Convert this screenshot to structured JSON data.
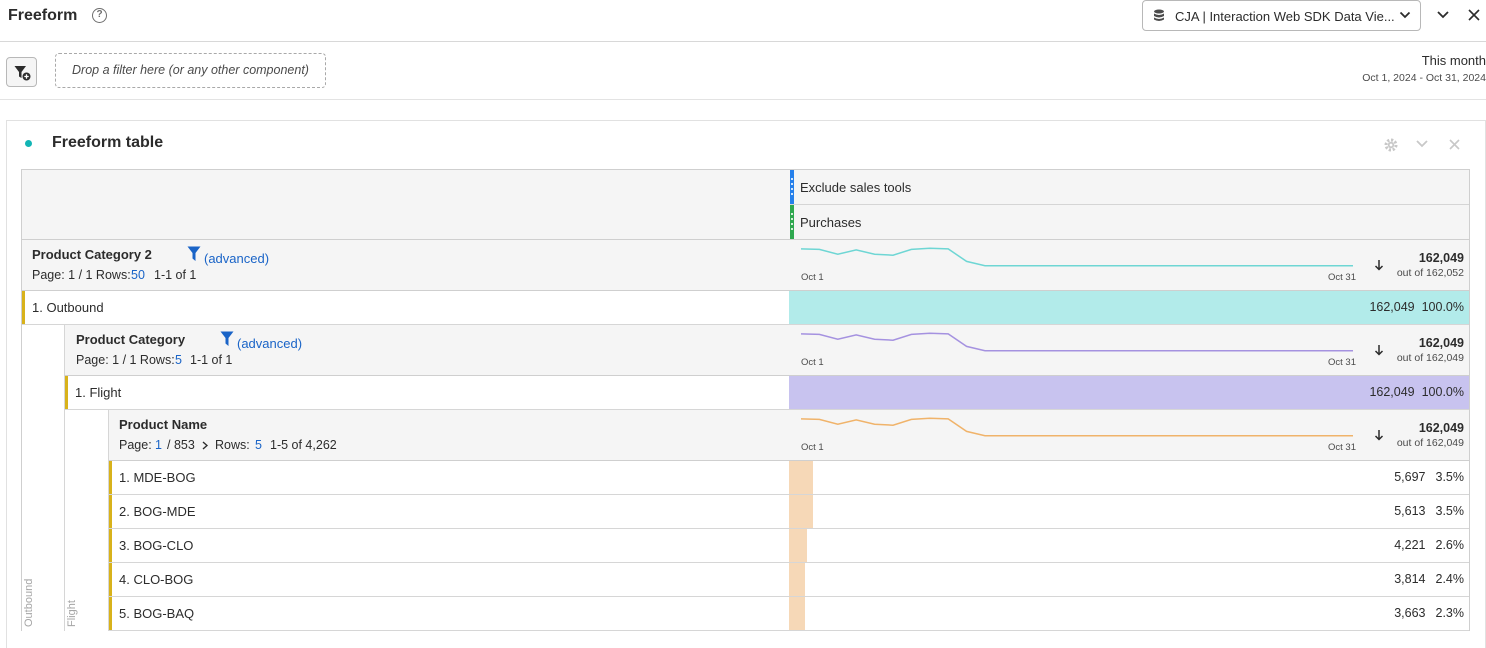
{
  "app": {
    "title": "Freeform",
    "data_view": "CJA | Interaction Web SDK Data Vie..."
  },
  "filter_bar": {
    "drop_zone": "Drop a filter here (or any other component)",
    "date_label": "This month",
    "date_range": "Oct 1, 2024 - Oct 31, 2024"
  },
  "panel": {
    "title": "Freeform table"
  },
  "metrics": {
    "segment": "Exclude sales tools",
    "metric": "Purchases",
    "segment_color": "#2680eb",
    "metric_color": "#2fa84f"
  },
  "dims": {
    "d1": {
      "name": "Product Category 2",
      "filter": "(advanced)",
      "page_label": "Page: 1 / 1 Rows:",
      "rows": "50",
      "range": "1-1 of 1",
      "spark_start": "Oct 1",
      "spark_end": "Oct 31",
      "total": "162,049",
      "out_of": "out of 162,052",
      "color": "#6ed6d4"
    },
    "d2": {
      "name": "Product Category",
      "filter": "(advanced)",
      "page_label": "Page: 1 / 1 Rows:",
      "rows": "5",
      "range": "1-1 of 1",
      "spark_start": "Oct 1",
      "spark_end": "Oct 31",
      "total": "162,049",
      "out_of": "out of 162,049",
      "color": "#a592e0"
    },
    "d3": {
      "name": "Product Name",
      "page_prefix": "Page:",
      "page": "1",
      "page_total": "/ 853",
      "rows_label": "Rows:",
      "rows": "5",
      "range": "1-5 of 4,262",
      "spark_start": "Oct 1",
      "spark_end": "Oct 31",
      "total": "162,049",
      "out_of": "out of 162,049",
      "color": "#f0b36a"
    }
  },
  "rows": {
    "outbound": {
      "label": "1.  Outbound",
      "value": "162,049",
      "pct": "100.0%",
      "bar_color": "#b2ebea",
      "share": 1.0
    },
    "flight": {
      "label": "1.  Flight",
      "value": "162,049",
      "pct": "100.0%",
      "bar_color": "#c8c3ef",
      "share": 1.0
    },
    "products": [
      {
        "label": "1.  MDE-BOG",
        "value": "5,697",
        "pct": "3.5%",
        "share": 0.035
      },
      {
        "label": "2.  BOG-MDE",
        "value": "5,613",
        "pct": "3.5%",
        "share": 0.035
      },
      {
        "label": "3.  BOG-CLO",
        "value": "4,221",
        "pct": "2.6%",
        "share": 0.026
      },
      {
        "label": "4.  CLO-BOG",
        "value": "3,814",
        "pct": "2.4%",
        "share": 0.024
      },
      {
        "label": "5.  BOG-BAQ",
        "value": "3,663",
        "pct": "2.3%",
        "share": 0.023
      }
    ],
    "product_bar_color": "#f6d8b7"
  },
  "vertical_labels": {
    "outbound": "Outbound",
    "flight": "Flight"
  },
  "icons": [
    "help-icon",
    "database-icon",
    "chevron-down-icon",
    "close-icon",
    "filter-add-icon",
    "gear-icon",
    "funnel-icon",
    "sort-desc-icon",
    "chevron-right-icon"
  ]
}
